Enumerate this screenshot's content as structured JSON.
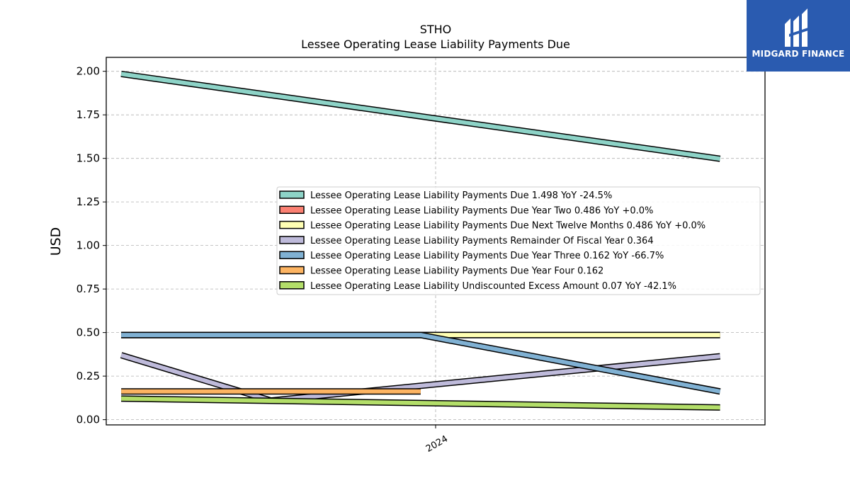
{
  "chart_data": {
    "type": "line",
    "title": "STHO",
    "subtitle": "Lessee Operating Lease Liability Payments Due",
    "ylabel": "USD",
    "xlabel": "",
    "ylim": [
      -0.03,
      2.08
    ],
    "yticks": [
      0.0,
      0.25,
      0.5,
      0.75,
      1.0,
      1.25,
      1.5,
      1.75,
      2.0
    ],
    "ytick_labels": [
      "0.00",
      "0.25",
      "0.50",
      "0.75",
      "1.00",
      "1.25",
      "1.50",
      "1.75",
      "2.00"
    ],
    "xtick_label": "2024",
    "grid": true,
    "legend_position": "center-right",
    "series": [
      {
        "name": "Lessee Operating Lease Liability Payments Due",
        "legend": "Lessee Operating Lease Liability Payments Due  1.498 YoY -24.5%",
        "color": "#8dd3c7",
        "points": [
          [
            2022.95,
            1.985
          ],
          [
            2024.95,
            1.498
          ]
        ]
      },
      {
        "name": "Lessee Operating Lease Liability Payments Due Year Two",
        "legend": "Lessee Operating Lease Liability Payments Due Year Two  0.486 YoY +0.0%",
        "color": "#fb8072",
        "points": [
          [
            2022.95,
            0.486
          ],
          [
            2023.95,
            0.486
          ],
          [
            2024.95,
            0.486
          ]
        ]
      },
      {
        "name": "Lessee Operating Lease Liability Payments Due Next Twelve Months",
        "legend": "Lessee Operating Lease Liability Payments Due Next Twelve Months  0.486 YoY +0.0%",
        "color": "#ffffb3",
        "points": [
          [
            2022.95,
            0.486
          ],
          [
            2023.95,
            0.486
          ],
          [
            2024.95,
            0.486
          ]
        ]
      },
      {
        "name": "Lessee Operating Lease Liability Payments Remainder Of Fiscal Year",
        "legend": "Lessee Operating Lease Liability Payments Remainder Of Fiscal Year  0.364",
        "color": "#bebada",
        "points": [
          [
            2022.95,
            0.37
          ],
          [
            2023.45,
            0.11
          ],
          [
            2024.95,
            0.364
          ]
        ]
      },
      {
        "name": "Lessee Operating Lease Liability Payments Due Year Three",
        "legend": "Lessee Operating Lease Liability Payments Due Year Three  0.162 YoY -66.7%",
        "color": "#80b1d3",
        "points": [
          [
            2022.95,
            0.486
          ],
          [
            2023.95,
            0.486
          ],
          [
            2024.95,
            0.162
          ]
        ]
      },
      {
        "name": "Lessee Operating Lease Liability Payments Due Year Four",
        "legend": "Lessee Operating Lease Liability Payments Due Year Four  0.162",
        "color": "#fdb462",
        "points": [
          [
            2022.95,
            0.162
          ],
          [
            2023.95,
            0.162
          ]
        ]
      },
      {
        "name": "Lessee Operating Lease Liability Undiscounted Excess Amount",
        "legend": "Lessee Operating Lease Liability Undiscounted Excess Amount  0.07 YoY -42.1%",
        "color": "#b3de69",
        "points": [
          [
            2022.95,
            0.121
          ],
          [
            2024.95,
            0.07
          ]
        ]
      }
    ]
  },
  "logo": {
    "text": "MIDGARD FINANCE",
    "color": "#2a5bb0"
  }
}
